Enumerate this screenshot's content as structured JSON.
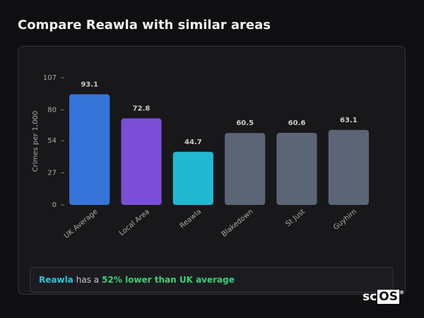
{
  "chart_data": {
    "type": "bar",
    "title": "Compare Reawla with similar areas",
    "y_label": "Crimes per 1,000",
    "categories": [
      "UK Average",
      "Local Area",
      "Reawla",
      "Blakedown",
      "St Just",
      "Guyhirn"
    ],
    "values": [
      93.1,
      72.8,
      44.7,
      60.5,
      60.6,
      63.1
    ],
    "colors": [
      "#3674d9",
      "#7a4ed6",
      "#22b8d1",
      "#5b6576",
      "#5b6576",
      "#5b6576"
    ],
    "ylim": [
      0,
      107
    ],
    "yticks": [
      0,
      27,
      54,
      80,
      107
    ],
    "grid": false
  },
  "insight": {
    "area": "Reawla",
    "middle": "has a",
    "highlight": "52% lower than UK average"
  },
  "logo": {
    "text": "sc",
    "boxed": "OS",
    "mark": "®"
  }
}
